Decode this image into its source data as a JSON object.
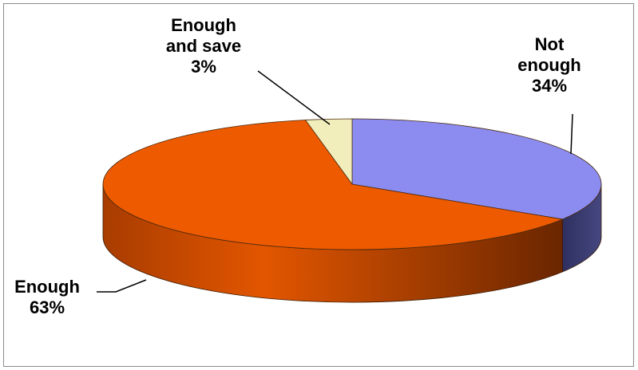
{
  "chart_data": {
    "type": "pie",
    "style": "3d",
    "title": "",
    "legend": "none",
    "slices": [
      {
        "label_lines": [
          "Not",
          "enough"
        ],
        "value": 34,
        "value_label": "34%",
        "color": "#8c8cf0",
        "side_color": "#3b3c6e"
      },
      {
        "label_lines": [
          "Enough"
        ],
        "value": 63,
        "value_label": "63%",
        "color": "#ee5a00",
        "side_color": "#b94300"
      },
      {
        "label_lines": [
          "Enough",
          "and save"
        ],
        "value": 3,
        "value_label": "3%",
        "color": "#f2eebb",
        "side_color": "#c9c490"
      }
    ]
  }
}
